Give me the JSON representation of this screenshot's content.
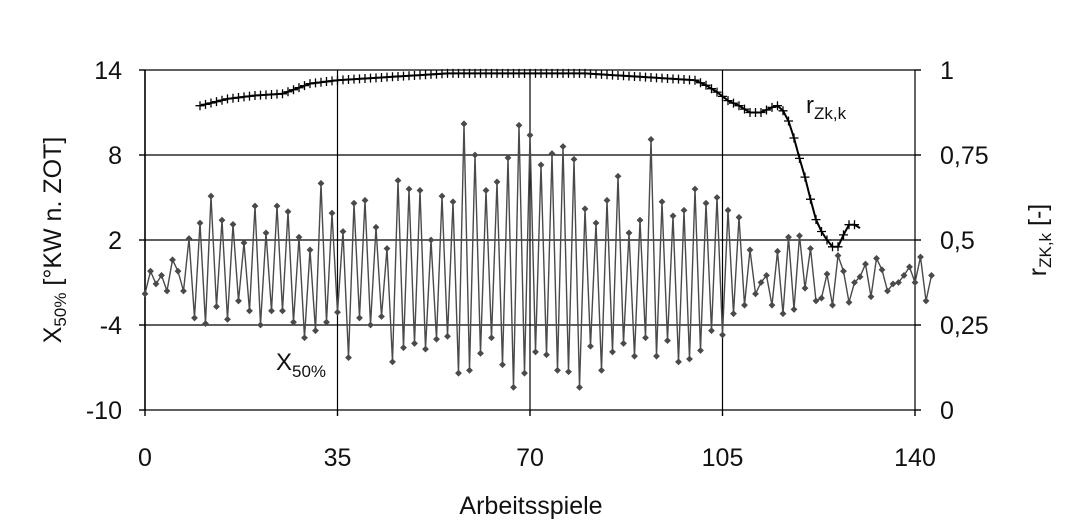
{
  "chart_data": {
    "type": "line",
    "xlabel": "Arbeitsspiele",
    "ylabel_left": {
      "main": "X",
      "sub": "50%",
      "rest": " [°KW n. ZOT]"
    },
    "ylabel_right": {
      "main": "r",
      "sub": "ZK,k",
      "rest": " [-]"
    },
    "xlim": [
      0,
      140
    ],
    "ylim_left": [
      -10,
      14
    ],
    "ylim_right": [
      0,
      1
    ],
    "x_ticks": [
      "0",
      "35",
      "70",
      "105",
      "140"
    ],
    "y_ticks_left": [
      "14",
      "8",
      "2",
      "-4",
      "-10"
    ],
    "y_ticks_right": [
      "1",
      "0,75",
      "0,5",
      "0,25",
      "0"
    ],
    "grid": true,
    "colors": {
      "x50": "#4a4a4a",
      "rzk": "#000000",
      "grid": "#000000"
    },
    "series": [
      {
        "name": "X50%",
        "label": {
          "main": "X",
          "sub": "50%"
        },
        "axis": "left",
        "marker": "diamond",
        "values": [
          -1.8,
          -0.2,
          -1.1,
          -0.5,
          -1.6,
          0.6,
          -0.2,
          -1.6,
          2.1,
          -3.5,
          3.2,
          -3.9,
          5.1,
          -2.7,
          3.4,
          -3.6,
          3.1,
          -2.3,
          1.8,
          -3.0,
          4.4,
          -4.0,
          2.5,
          -3.0,
          4.4,
          -3.0,
          4.0,
          -3.8,
          2.2,
          -4.9,
          1.3,
          -4.4,
          6.0,
          -3.8,
          3.9,
          -3.1,
          2.6,
          -6.3,
          4.6,
          -3.5,
          4.8,
          -4.0,
          2.9,
          -3.4,
          1.4,
          -6.6,
          6.2,
          -5.6,
          5.6,
          -5.3,
          5.5,
          -5.7,
          2.0,
          -5.0,
          5.1,
          -4.8,
          4.7,
          -7.4,
          10.2,
          -7.2,
          8.0,
          -6.0,
          5.5,
          -4.9,
          6.1,
          -6.8,
          7.8,
          -8.4,
          10.1,
          -7.4,
          9.4,
          -5.9,
          7.3,
          -6.1,
          8.1,
          -7.2,
          8.6,
          -7.3,
          7.7,
          -8.4,
          4.2,
          -5.5,
          3.2,
          -7.2,
          4.8,
          -5.9,
          6.5,
          -5.3,
          2.5,
          -6.2,
          3.4,
          -4.9,
          9.1,
          -6.2,
          4.7,
          -5.1,
          3.7,
          -6.6,
          4.1,
          -6.4,
          5.6,
          -5.8,
          4.6,
          -4.4,
          5.0,
          -4.7,
          4.1,
          -3.2,
          3.6,
          -2.6,
          1.3,
          -1.8,
          -1.0,
          -0.5,
          -2.6,
          1.2,
          -3.2,
          2.2,
          -2.9,
          2.3,
          -1.4,
          1.4,
          -2.3,
          -2.1,
          -0.4,
          -2.6,
          0.9,
          -0.2,
          -2.4,
          -1.0,
          -0.6,
          0.3,
          -2.0,
          0.7,
          -0.1,
          -1.6,
          -1.1,
          -1.0,
          -0.5,
          0.1,
          -1.0,
          0.8,
          -2.3,
          -0.5
        ]
      },
      {
        "name": "rZk,k",
        "label": {
          "main": "r",
          "sub": "Zk,k"
        },
        "axis": "right",
        "marker": "plus",
        "x": [
          10,
          15,
          20,
          25,
          30,
          35,
          40,
          45,
          50,
          55,
          60,
          65,
          70,
          75,
          80,
          85,
          90,
          95,
          100,
          102,
          104,
          106,
          108,
          110,
          112,
          114,
          115,
          116,
          117,
          118,
          119,
          120,
          121,
          122,
          123,
          124,
          125,
          126,
          127,
          128,
          129,
          130
        ],
        "values": [
          0.895,
          0.915,
          0.925,
          0.93,
          0.96,
          0.97,
          0.975,
          0.98,
          0.985,
          0.99,
          0.99,
          0.99,
          0.99,
          0.99,
          0.99,
          0.985,
          0.98,
          0.975,
          0.97,
          0.955,
          0.935,
          0.91,
          0.895,
          0.875,
          0.875,
          0.89,
          0.895,
          0.88,
          0.85,
          0.8,
          0.74,
          0.685,
          0.62,
          0.56,
          0.525,
          0.5,
          0.48,
          0.48,
          0.515,
          0.545,
          0.545,
          0.535
        ]
      }
    ]
  }
}
